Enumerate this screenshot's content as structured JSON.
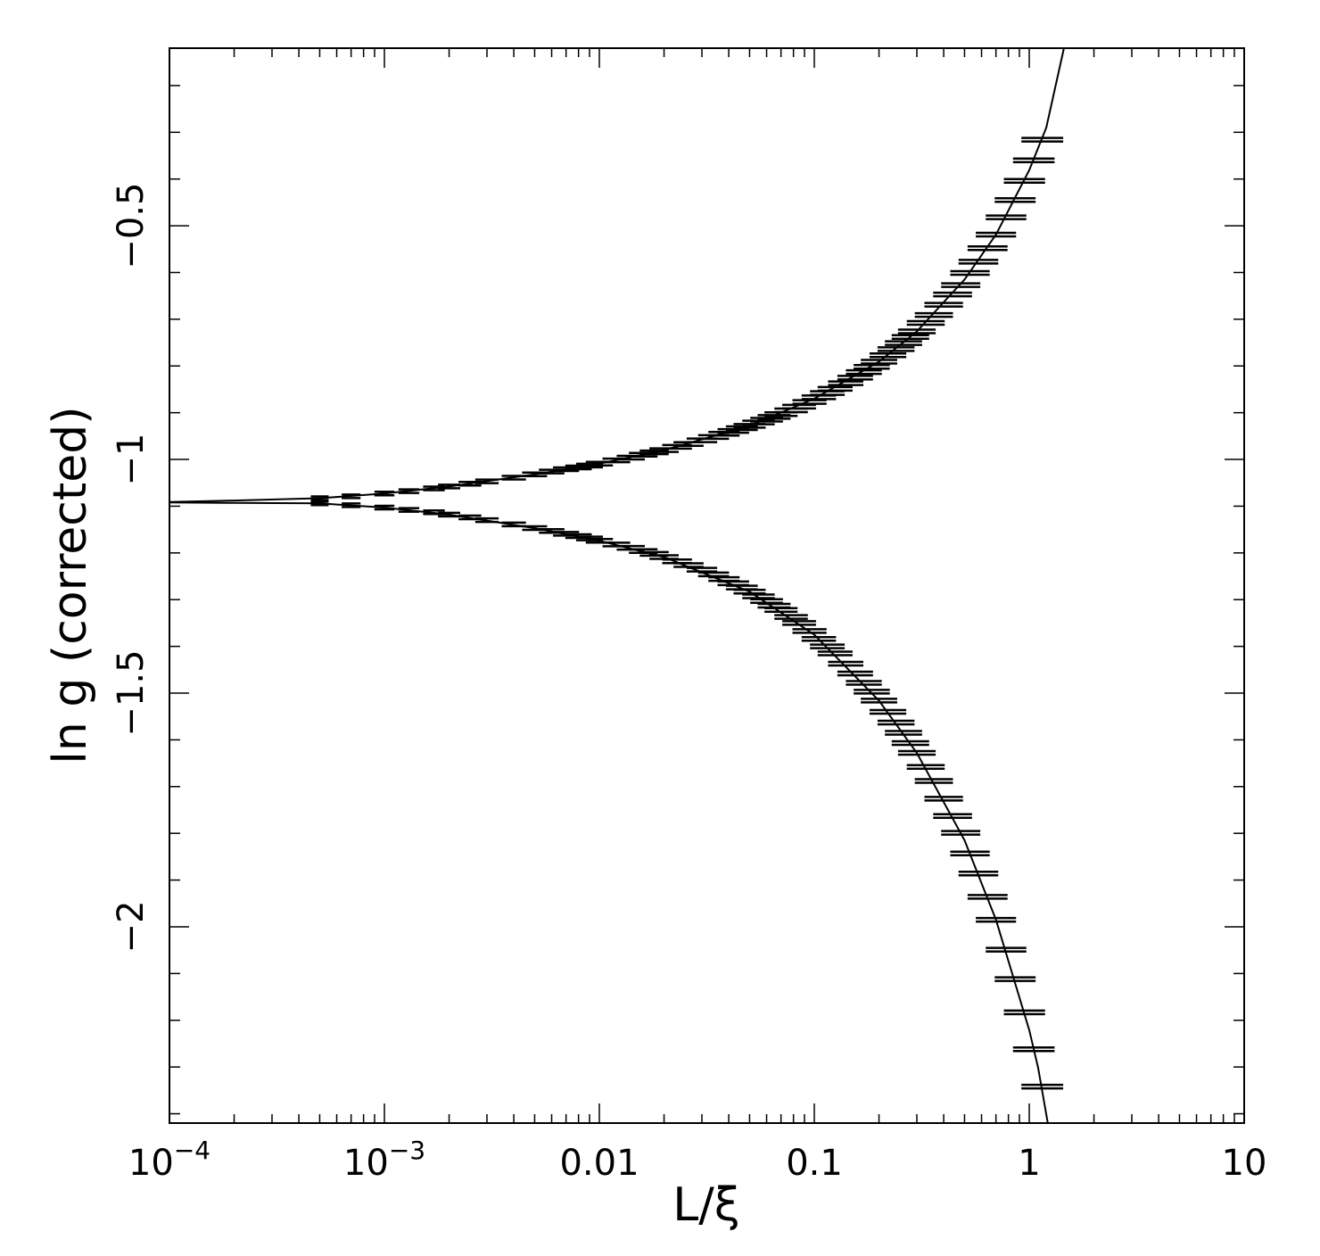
{
  "chart_data": {
    "type": "scatter",
    "title": "",
    "xlabel": "L/ξ",
    "ylabel": "ln g (corrected)",
    "xscale": "log",
    "xlim": [
      0.0001,
      10
    ],
    "ylim": [
      -2.42,
      -0.12
    ],
    "grid": false,
    "legend": "none",
    "x_ticks": [
      {
        "value": 0.0001,
        "label": "10",
        "exp": "−4"
      },
      {
        "value": 0.001,
        "label": "10",
        "exp": "−3"
      },
      {
        "value": 0.01,
        "label": "0.01",
        "exp": ""
      },
      {
        "value": 0.1,
        "label": "0.1",
        "exp": ""
      },
      {
        "value": 1,
        "label": "1",
        "exp": ""
      },
      {
        "value": 10,
        "label": "10",
        "exp": ""
      }
    ],
    "y_ticks": [
      {
        "value": -0.5,
        "label": "−0.5"
      },
      {
        "value": -1,
        "label": "−1"
      },
      {
        "value": -1.5,
        "label": "−1.5"
      },
      {
        "value": -2,
        "label": "−2"
      }
    ],
    "series": [
      {
        "x": [
          0.0005,
          0.0007,
          0.001,
          0.0013,
          0.0017,
          0.002,
          0.0025,
          0.003,
          0.004,
          0.005,
          0.006,
          0.007,
          0.008,
          0.009,
          0.01,
          0.012,
          0.014,
          0.016,
          0.018,
          0.02,
          0.023,
          0.026,
          0.03,
          0.034,
          0.038,
          0.042,
          0.046,
          0.05,
          0.055,
          0.06,
          0.065,
          0.07,
          0.078,
          0.085,
          0.095,
          0.105,
          0.115,
          0.125,
          0.14,
          0.155,
          0.17,
          0.185,
          0.2,
          0.22,
          0.24,
          0.26,
          0.28,
          0.3,
          0.33,
          0.36,
          0.4,
          0.44,
          0.48,
          0.53,
          0.58,
          0.64,
          0.7,
          0.78,
          0.86,
          0.95,
          1.05,
          1.15
        ],
        "y": [
          -1.083,
          -1.079,
          -1.073,
          -1.068,
          -1.062,
          -1.058,
          -1.052,
          -1.047,
          -1.039,
          -1.032,
          -1.026,
          -1.021,
          -1.017,
          -1.013,
          -1.009,
          -1.002,
          -0.996,
          -0.99,
          -0.985,
          -0.98,
          -0.973,
          -0.967,
          -0.959,
          -0.952,
          -0.945,
          -0.939,
          -0.933,
          -0.928,
          -0.921,
          -0.915,
          -0.909,
          -0.903,
          -0.895,
          -0.887,
          -0.877,
          -0.867,
          -0.858,
          -0.849,
          -0.837,
          -0.825,
          -0.813,
          -0.802,
          -0.791,
          -0.777,
          -0.764,
          -0.751,
          -0.738,
          -0.726,
          -0.708,
          -0.691,
          -0.669,
          -0.647,
          -0.627,
          -0.601,
          -0.577,
          -0.548,
          -0.519,
          -0.482,
          -0.445,
          -0.404,
          -0.36,
          -0.316
        ]
      },
      {
        "x": [
          0.0005,
          0.0007,
          0.001,
          0.0013,
          0.0017,
          0.002,
          0.0025,
          0.003,
          0.004,
          0.005,
          0.006,
          0.007,
          0.008,
          0.009,
          0.01,
          0.012,
          0.014,
          0.016,
          0.018,
          0.02,
          0.023,
          0.026,
          0.03,
          0.034,
          0.038,
          0.042,
          0.046,
          0.05,
          0.055,
          0.06,
          0.065,
          0.07,
          0.078,
          0.085,
          0.095,
          0.105,
          0.115,
          0.125,
          0.14,
          0.155,
          0.17,
          0.185,
          0.2,
          0.22,
          0.24,
          0.26,
          0.28,
          0.3,
          0.33,
          0.36,
          0.4,
          0.44,
          0.48,
          0.53,
          0.58,
          0.64,
          0.7,
          0.78,
          0.86,
          0.95,
          1.05,
          1.15
        ],
        "y": [
          -1.094,
          -1.098,
          -1.103,
          -1.108,
          -1.113,
          -1.118,
          -1.124,
          -1.13,
          -1.139,
          -1.147,
          -1.153,
          -1.159,
          -1.164,
          -1.169,
          -1.174,
          -1.182,
          -1.189,
          -1.196,
          -1.202,
          -1.209,
          -1.218,
          -1.226,
          -1.236,
          -1.246,
          -1.256,
          -1.265,
          -1.274,
          -1.283,
          -1.293,
          -1.303,
          -1.313,
          -1.322,
          -1.337,
          -1.35,
          -1.367,
          -1.384,
          -1.4,
          -1.415,
          -1.437,
          -1.458,
          -1.478,
          -1.497,
          -1.516,
          -1.54,
          -1.563,
          -1.585,
          -1.607,
          -1.628,
          -1.658,
          -1.688,
          -1.726,
          -1.763,
          -1.799,
          -1.843,
          -1.886,
          -1.936,
          -1.985,
          -2.049,
          -2.112,
          -2.183,
          -2.262,
          -2.342
        ]
      }
    ],
    "fit_curves": [
      {
        "x": [
          0.0001,
          0.0002,
          0.0005,
          0.001,
          0.002,
          0.005,
          0.01,
          0.02,
          0.05,
          0.1,
          0.2,
          0.3,
          0.5,
          0.7,
          1,
          1.2,
          1.45
        ],
        "y": [
          -1.091,
          -1.088,
          -1.083,
          -1.073,
          -1.058,
          -1.032,
          -1.009,
          -0.98,
          -0.928,
          -0.87,
          -0.791,
          -0.726,
          -0.615,
          -0.519,
          -0.381,
          -0.29,
          -0.12
        ]
      },
      {
        "x": [
          0.0001,
          0.0002,
          0.0005,
          0.001,
          0.002,
          0.005,
          0.01,
          0.02,
          0.05,
          0.1,
          0.2,
          0.3,
          0.5,
          0.7,
          1,
          1.1,
          1.22
        ],
        "y": [
          -1.092,
          -1.093,
          -1.094,
          -1.103,
          -1.118,
          -1.147,
          -1.174,
          -1.209,
          -1.283,
          -1.375,
          -1.516,
          -1.628,
          -1.815,
          -1.985,
          -2.221,
          -2.302,
          -2.42
        ]
      }
    ]
  }
}
